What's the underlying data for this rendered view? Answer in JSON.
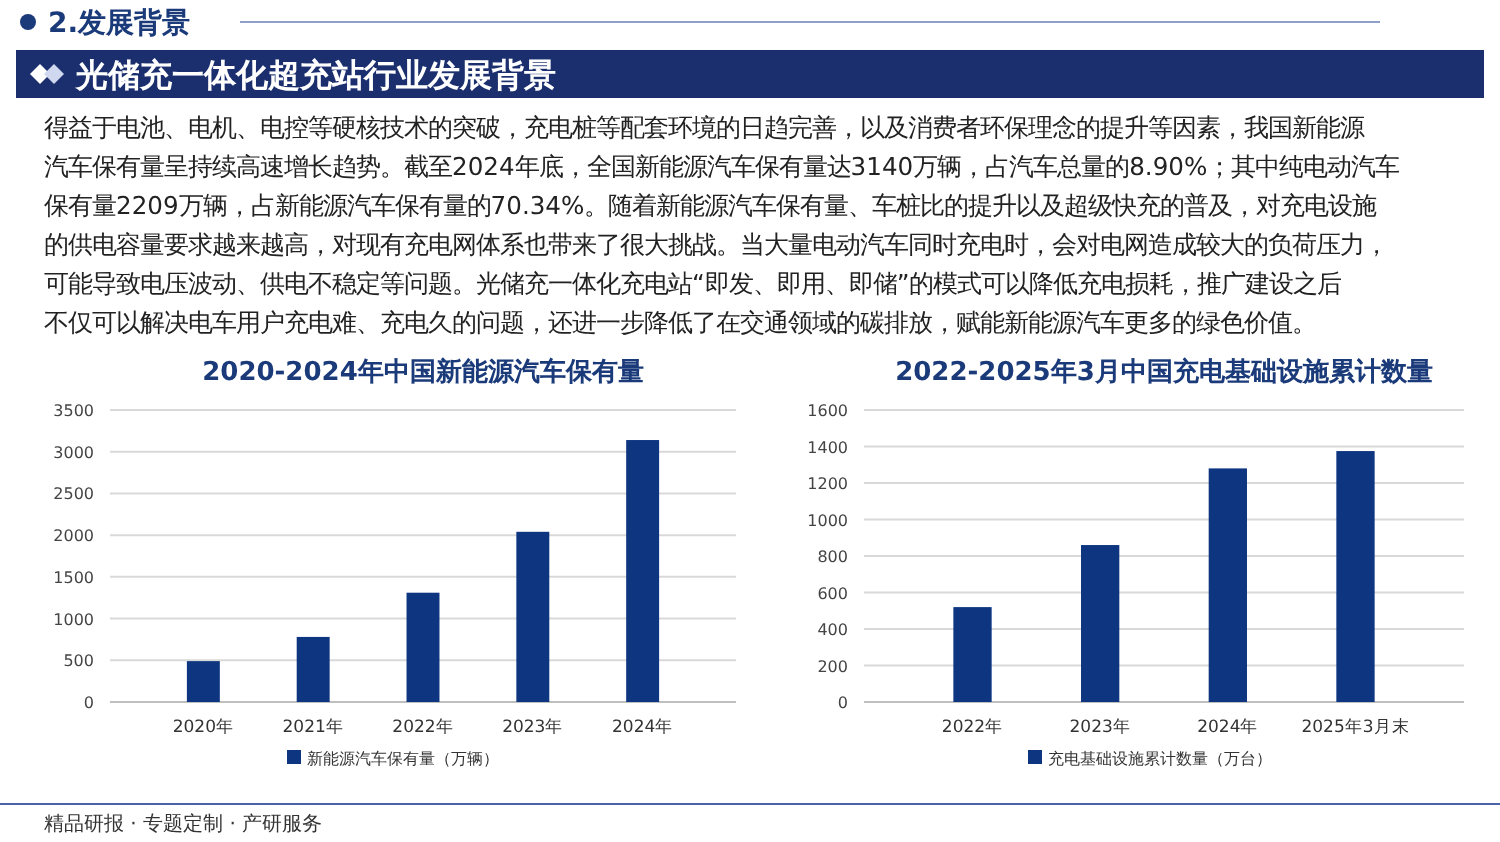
{
  "chart_data": [
    {
      "type": "other",
      "title": "光储充一体化超充站行业发展背景",
      "subtitle": "2.发展背景",
      "annotations": [
        "得益于电池、电机、电控等硬核技术的突破，充电桩等配套环境的日趋完善，以及消费者环保理念的提升等因素，我国新能源",
        "汽车保有量呈持续高速增长趋势。截至2024年底，全国新能源汽车保有量达3140万辆，占汽车总量的8.90%；其中纯电动汽车",
        "保有量2209万辆，占新能源汽车保有量的70.34%。随着新能源汽车保有量、车桩比的提升以及超级快充的普及，对充电设施",
        "的供电容量要求越来越高，对现有充电网体系也带来了很大挑战。当大量电动汽车同时充电时，会对电网造成较大的负荷压力，",
        "可能导致电压波动、供电不稳定等问题。光储充一体化充电站“即发、即用、即储”的模式可以降低充电损耗，推广建设之后",
        "不仅可以解决电车用户充电难、充电久的问题，还进一步降低了在交通领域的碳排放，赋能新能源汽车更多的绿色价值。",
        "精品研报 · 专题定制 · 产研服务"
      ]
    },
    {
      "type": "bar",
      "title": "2020-2024年中国新能源汽车保有量",
      "categories": [
        "2020年",
        "2021年",
        "2022年",
        "2023年",
        "2024年"
      ],
      "series": [
        {
          "name": "新能源汽车保有量（万辆）",
          "color": "#0d3580",
          "values": [
            490,
            780,
            1310,
            2040,
            3140
          ]
        }
      ],
      "ylim": [
        0,
        3500
      ],
      "yticks": [
        0,
        500,
        1000,
        1500,
        2000,
        2500,
        3000,
        3500
      ],
      "grid": "y",
      "legend": "bottom"
    },
    {
      "type": "bar",
      "title": "2022-2025年3月中国充电基础设施累计数量",
      "categories": [
        "2022年",
        "2023年",
        "2024年",
        "2025年3月末"
      ],
      "series": [
        {
          "name": "充电基础设施累计数量（万台）",
          "color": "#0d3580",
          "values": [
            520,
            860,
            1280,
            1375
          ]
        }
      ],
      "ylim": [
        0,
        1600
      ],
      "yticks": [
        0,
        200,
        400,
        600,
        800,
        1000,
        1200,
        1400,
        1600
      ],
      "grid": "y",
      "legend": "bottom"
    }
  ]
}
